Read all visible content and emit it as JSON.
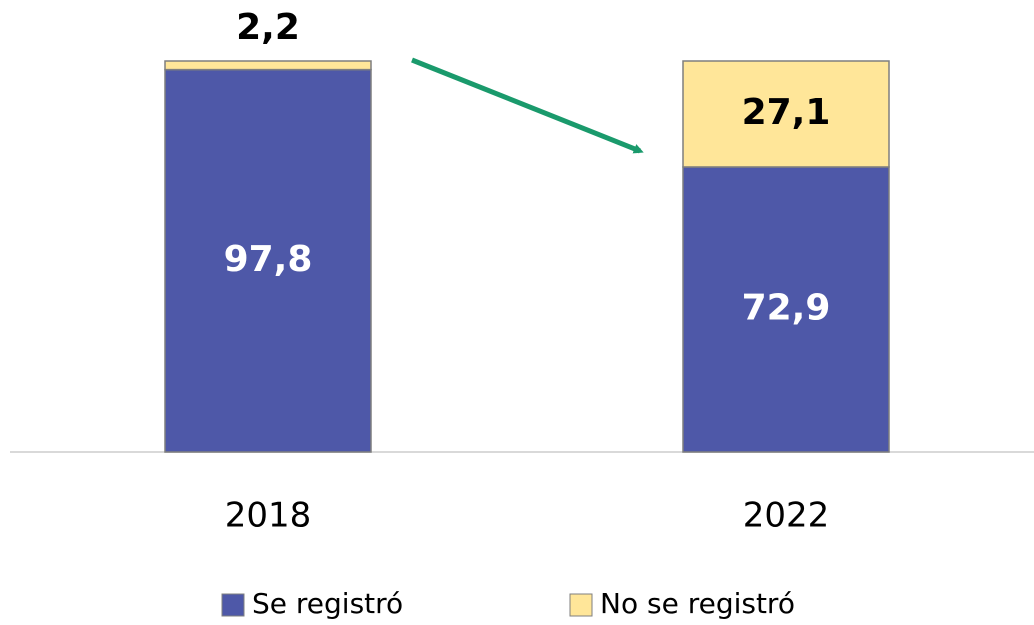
{
  "chart_data": {
    "type": "stacked_bar",
    "categories": [
      "2018",
      "2022"
    ],
    "series": [
      {
        "name": "Se registró",
        "color": "#4e58a8",
        "values": [
          97.8,
          72.9
        ],
        "value_labels": [
          "97,8",
          "72,9"
        ]
      },
      {
        "name": "No se registró",
        "color": "#ffe699",
        "values": [
          2.2,
          27.1
        ],
        "value_labels": [
          "2,2",
          "27,1"
        ]
      }
    ],
    "legend": "bottom"
  }
}
